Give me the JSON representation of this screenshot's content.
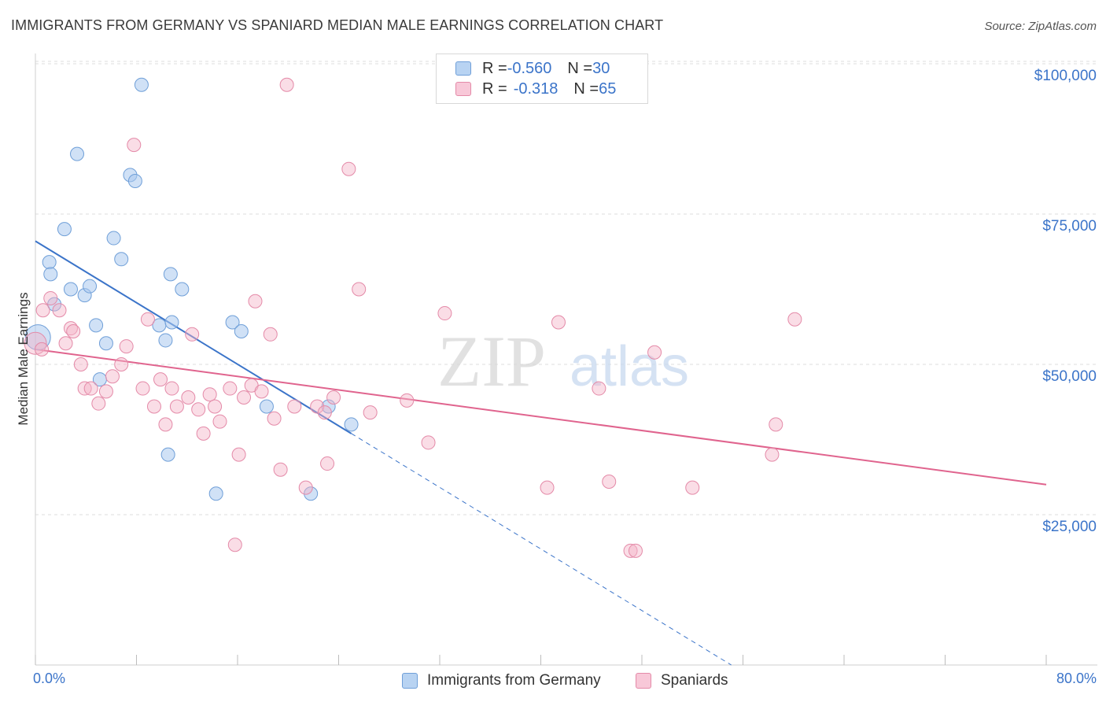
{
  "header": {
    "title": "IMMIGRANTS FROM GERMANY VS SPANIARD MEDIAN MALE EARNINGS CORRELATION CHART",
    "source": "Source: ZipAtlas.com"
  },
  "legend": {
    "germany": {
      "r_label": "R = ",
      "r_value": "-0.560",
      "n_label": "N = ",
      "n_value": "30"
    },
    "spaniards": {
      "r_label": "R = ",
      "r_value": "-0.318",
      "n_label": "N = ",
      "n_value": "65"
    }
  },
  "bottom_legend": {
    "germany": "Immigrants from Germany",
    "spaniards": "Spaniards"
  },
  "axis": {
    "x_min_label": "0.0%",
    "x_max_label": "80.0%",
    "y_label": "Median Male Earnings",
    "y_ticks": [
      "$100,000",
      "$75,000",
      "$50,000",
      "$25,000"
    ]
  },
  "watermark": {
    "zip": "ZIP",
    "atlas": "atlas"
  },
  "colors": {
    "germany": "#a9c8ee",
    "germany_line": "#3b74c9",
    "spaniards": "#f3b3c8",
    "spaniards_line": "#e0648e",
    "accent": "#3b74c9"
  },
  "chart_data": {
    "type": "scatter",
    "title": "IMMIGRANTS FROM GERMANY VS SPANIARD MEDIAN MALE EARNINGS CORRELATION CHART",
    "xlabel": "",
    "ylabel": "Median Male Earnings",
    "xlim": [
      0,
      80
    ],
    "ylim": [
      0,
      105000
    ],
    "y_ticks": [
      25000,
      50000,
      75000,
      100000
    ],
    "grid": true,
    "legend_position": "top-center",
    "series": [
      {
        "name": "Immigrants from Germany",
        "r": -0.56,
        "n": 30,
        "trend": {
          "x0": 0,
          "y0": 70500,
          "x1": 25,
          "y1": 38500,
          "extend_to_x": 70
        },
        "points": [
          [
            0.2,
            54500
          ],
          [
            1.1,
            67000
          ],
          [
            1.2,
            65000
          ],
          [
            1.5,
            60000
          ],
          [
            2.3,
            72500
          ],
          [
            2.8,
            62500
          ],
          [
            3.3,
            85000
          ],
          [
            3.9,
            61500
          ],
          [
            4.3,
            63000
          ],
          [
            4.8,
            56500
          ],
          [
            5.1,
            47500
          ],
          [
            5.6,
            53500
          ],
          [
            6.2,
            71000
          ],
          [
            6.8,
            67500
          ],
          [
            7.5,
            81500
          ],
          [
            7.9,
            80500
          ],
          [
            8.4,
            96500
          ],
          [
            9.8,
            56500
          ],
          [
            10.3,
            54000
          ],
          [
            10.8,
            57000
          ],
          [
            10.7,
            65000
          ],
          [
            11.6,
            62500
          ],
          [
            10.5,
            35000
          ],
          [
            14.3,
            28500
          ],
          [
            15.6,
            57000
          ],
          [
            16.3,
            55500
          ],
          [
            18.3,
            43000
          ],
          [
            21.8,
            28500
          ],
          [
            23.2,
            43000
          ],
          [
            25.0,
            40000
          ]
        ]
      },
      {
        "name": "Spaniards",
        "r": -0.318,
        "n": 65,
        "trend": {
          "x0": 0,
          "y0": 52500,
          "x1": 80,
          "y1": 30000
        },
        "points": [
          [
            0.0,
            53500
          ],
          [
            0.6,
            59000
          ],
          [
            1.2,
            61000
          ],
          [
            1.9,
            59000
          ],
          [
            2.4,
            53500
          ],
          [
            2.8,
            56000
          ],
          [
            3.0,
            55500
          ],
          [
            3.6,
            50000
          ],
          [
            3.9,
            46000
          ],
          [
            4.4,
            46000
          ],
          [
            5.0,
            43500
          ],
          [
            5.6,
            45500
          ],
          [
            6.1,
            48000
          ],
          [
            6.8,
            50000
          ],
          [
            7.2,
            53000
          ],
          [
            7.8,
            86500
          ],
          [
            8.5,
            46000
          ],
          [
            8.9,
            57500
          ],
          [
            9.4,
            43000
          ],
          [
            9.9,
            47500
          ],
          [
            10.3,
            40000
          ],
          [
            10.8,
            46000
          ],
          [
            11.2,
            43000
          ],
          [
            12.1,
            44500
          ],
          [
            12.4,
            55000
          ],
          [
            12.9,
            42500
          ],
          [
            13.3,
            38500
          ],
          [
            13.8,
            45000
          ],
          [
            14.2,
            43000
          ],
          [
            14.6,
            40500
          ],
          [
            15.4,
            46000
          ],
          [
            15.8,
            20000
          ],
          [
            16.1,
            35000
          ],
          [
            16.5,
            44500
          ],
          [
            17.1,
            46500
          ],
          [
            17.4,
            60500
          ],
          [
            17.9,
            45500
          ],
          [
            18.6,
            55000
          ],
          [
            18.9,
            41000
          ],
          [
            19.4,
            32500
          ],
          [
            19.9,
            96500
          ],
          [
            20.5,
            43000
          ],
          [
            21.4,
            29500
          ],
          [
            22.3,
            43000
          ],
          [
            22.9,
            42000
          ],
          [
            23.1,
            33500
          ],
          [
            23.6,
            44500
          ],
          [
            24.8,
            82500
          ],
          [
            25.6,
            62500
          ],
          [
            26.5,
            42000
          ],
          [
            29.4,
            44000
          ],
          [
            31.1,
            37000
          ],
          [
            32.4,
            58500
          ],
          [
            40.5,
            29500
          ],
          [
            41.4,
            57000
          ],
          [
            44.6,
            46000
          ],
          [
            45.4,
            30500
          ],
          [
            47.1,
            19000
          ],
          [
            47.5,
            19000
          ],
          [
            49.0,
            52000
          ],
          [
            52.0,
            29500
          ],
          [
            58.3,
            35000
          ],
          [
            58.6,
            40000
          ],
          [
            60.1,
            57500
          ],
          [
            0.5,
            52500
          ]
        ]
      }
    ]
  }
}
